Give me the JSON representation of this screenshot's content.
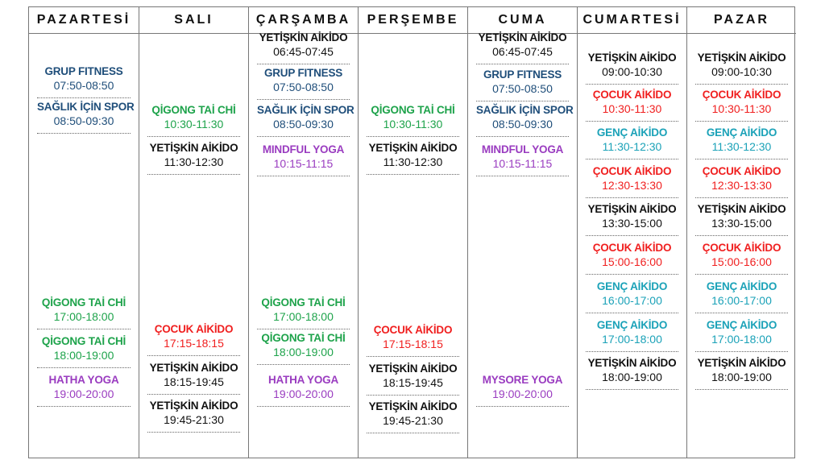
{
  "colors": {
    "black": "#111111",
    "navy": "#1f4e7a",
    "green": "#1ea34b",
    "red": "#f01f1f",
    "teal": "#1ba2b8",
    "purple": "#9a3cc0"
  },
  "days": [
    {
      "name": "PAZARTESİ",
      "classes": [
        {
          "name": "GRUP FITNESS",
          "time": "07:50-08:50",
          "color": "navy"
        },
        {
          "name": "SAĞLIK İÇİN SPOR",
          "time": "08:50-09:30",
          "color": "navy"
        },
        {
          "name": "QİGONG TAİ CHİ",
          "time": "17:00-18:00",
          "color": "green"
        },
        {
          "name": "QİGONG TAİ CHİ",
          "time": "18:00-19:00",
          "color": "green"
        },
        {
          "name": "HATHA YOGA",
          "time": "19:00-20:00",
          "color": "purple"
        }
      ]
    },
    {
      "name": "SALI",
      "classes": [
        {
          "name": "QİGONG TAİ CHİ",
          "time": "10:30-11:30",
          "color": "green"
        },
        {
          "name": "YETİŞKİN AİKİDO",
          "time": "11:30-12:30",
          "color": "black"
        },
        {
          "name": "ÇOCUK AİKİDO",
          "time": "17:15-18:15",
          "color": "red"
        },
        {
          "name": "YETİŞKİN AİKİDO",
          "time": "18:15-19:45",
          "color": "black"
        },
        {
          "name": "YETİŞKİN AİKİDO",
          "time": "19:45-21:30",
          "color": "black"
        }
      ]
    },
    {
      "name": "ÇARŞAMBA",
      "classes": [
        {
          "name": "YETİŞKİN AİKİDO",
          "time": "06:45-07:45",
          "color": "black"
        },
        {
          "name": "GRUP FITNESS",
          "time": "07:50-08:50",
          "color": "navy"
        },
        {
          "name": "SAĞLIK İÇİN SPOR",
          "time": "08:50-09:30",
          "color": "navy"
        },
        {
          "name": "MINDFUL YOGA",
          "time": "10:15-11:15",
          "color": "purple"
        },
        {
          "name": "QİGONG TAİ CHİ",
          "time": "17:00-18:00",
          "color": "green"
        },
        {
          "name": "QİGONG TAİ CHİ",
          "time": "18:00-19:00",
          "color": "green"
        },
        {
          "name": "HATHA YOGA",
          "time": "19:00-20:00",
          "color": "purple"
        }
      ]
    },
    {
      "name": "PERŞEMBE",
      "classes": [
        {
          "name": "QİGONG TAİ CHİ",
          "time": "10:30-11:30",
          "color": "green"
        },
        {
          "name": "YETİŞKİN AİKİDO",
          "time": "11:30-12:30",
          "color": "black"
        },
        {
          "name": "ÇOCUK AİKİDO",
          "time": "17:15-18:15",
          "color": "red"
        },
        {
          "name": "YETİŞKİN AİKİDO",
          "time": "18:15-19:45",
          "color": "black"
        },
        {
          "name": "YETİŞKİN AİKİDO",
          "time": "19:45-21:30",
          "color": "black"
        }
      ]
    },
    {
      "name": "CUMA",
      "classes": [
        {
          "name": "YETİŞKİN AİKİDO",
          "time": "06:45-07:45",
          "color": "black"
        },
        {
          "name": "GRUP FITNESS",
          "time": "07:50-08:50",
          "color": "navy"
        },
        {
          "name": "SAĞLIK İÇİN SPOR",
          "time": "08:50-09:30",
          "color": "navy"
        },
        {
          "name": "MINDFUL YOGA",
          "time": "10:15-11:15",
          "color": "purple"
        },
        {
          "name": "MYSORE YOGA",
          "time": "19:00-20:00",
          "color": "purple"
        }
      ]
    },
    {
      "name": "CUMARTESİ",
      "classes": [
        {
          "name": "YETİŞKİN AİKİDO",
          "time": "09:00-10:30",
          "color": "black"
        },
        {
          "name": "ÇOCUK AİKİDO",
          "time": "10:30-11:30",
          "color": "red"
        },
        {
          "name": "GENÇ AİKİDO",
          "time": "11:30-12:30",
          "color": "teal"
        },
        {
          "name": "ÇOCUK AİKİDO",
          "time": "12:30-13:30",
          "color": "red"
        },
        {
          "name": "YETİŞKİN AİKİDO",
          "time": "13:30-15:00",
          "color": "black"
        },
        {
          "name": "ÇOCUK AİKİDO",
          "time": "15:00-16:00",
          "color": "red"
        },
        {
          "name": "GENÇ AİKİDO",
          "time": "16:00-17:00",
          "color": "teal"
        },
        {
          "name": "GENÇ AİKİDO",
          "time": "17:00-18:00",
          "color": "teal"
        },
        {
          "name": "YETİŞKİN AİKİDO",
          "time": "18:00-19:00",
          "color": "black"
        }
      ]
    },
    {
      "name": "PAZAR",
      "classes": [
        {
          "name": "YETİŞKİN AİKİDO",
          "time": "09:00-10:30",
          "color": "black"
        },
        {
          "name": "ÇOCUK AİKİDO",
          "time": "10:30-11:30",
          "color": "red"
        },
        {
          "name": "GENÇ AİKİDO",
          "time": "11:30-12:30",
          "color": "teal"
        },
        {
          "name": "ÇOCUK AİKİDO",
          "time": "12:30-13:30",
          "color": "red"
        },
        {
          "name": "YETİŞKİN AİKİDO",
          "time": "13:30-15:00",
          "color": "black"
        },
        {
          "name": "ÇOCUK AİKİDO",
          "time": "15:00-16:00",
          "color": "red"
        },
        {
          "name": "GENÇ AİKİDO",
          "time": "16:00-17:00",
          "color": "teal"
        },
        {
          "name": "GENÇ AİKİDO",
          "time": "17:00-18:00",
          "color": "teal"
        },
        {
          "name": "YETİŞKİN AİKİDO",
          "time": "18:00-19:00",
          "color": "black"
        }
      ]
    }
  ]
}
